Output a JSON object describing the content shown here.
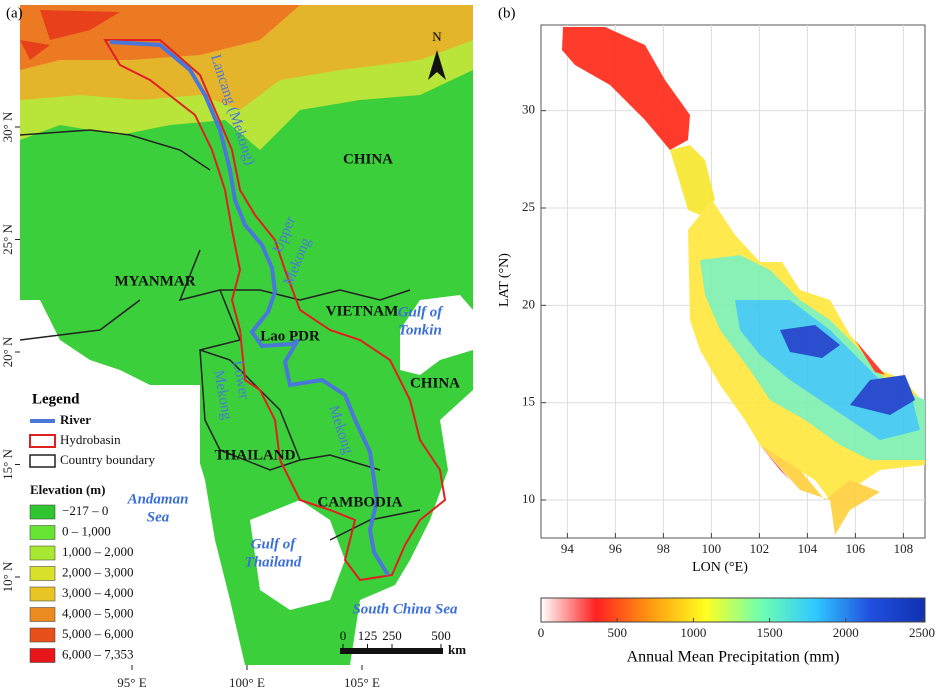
{
  "panel_a": {
    "label": "(a)",
    "countries": [
      "CHINA",
      "MYANMAR",
      "VIETNAM",
      "Lao PDR",
      "CHINA",
      "THAILAND",
      "CAMBODIA"
    ],
    "waters": [
      "Gulf of",
      "Tonkin",
      "Andaman",
      "Sea",
      "Gulf of",
      "Thailand",
      "South China Sea"
    ],
    "river_labels": [
      "Lancang (Mekong)",
      "Upper",
      "Mekong",
      "Lower",
      "Mekong",
      "Mekong"
    ],
    "north": "N",
    "legend": {
      "title": "Legend",
      "items": [
        "River",
        "Hydrobasin",
        "Country boundary"
      ],
      "elevation_title": "Elevation (m)",
      "elevation_classes": [
        "−217 – 0",
        "0 – 1,000",
        "1,000 – 2,000",
        "2,000 – 3,000",
        "3,000 – 4,000",
        "4,000 – 5,000",
        "5,000 – 6,000",
        "6,000 – 7,353"
      ],
      "elevation_colors": [
        "#2fc62f",
        "#66e633",
        "#a8e833",
        "#d9e02a",
        "#e8c424",
        "#ec8a22",
        "#e8501a",
        "#e8161a"
      ]
    },
    "scale": {
      "ticks": [
        0,
        125,
        250,
        500
      ],
      "unit": "km"
    },
    "lon_ticks": [
      {
        "value": 95,
        "label": "95° E"
      },
      {
        "value": 100,
        "label": "100° E"
      },
      {
        "value": 105,
        "label": "105° E"
      }
    ],
    "lat_ticks": [
      {
        "value": 30,
        "label": "30° N"
      },
      {
        "value": 25,
        "label": "25° N"
      },
      {
        "value": 20,
        "label": "20° N"
      },
      {
        "value": 15,
        "label": "15° N"
      },
      {
        "value": 10,
        "label": "10° N"
      }
    ]
  },
  "panel_b": {
    "label": "(b)",
    "xlabel": "LON (°E)",
    "ylabel": "LAT (°N)",
    "xlim": [
      92.9,
      108.9
    ],
    "ylim": [
      8.05,
      34.4
    ],
    "xticks": [
      94,
      96,
      98,
      100,
      102,
      104,
      106,
      108
    ],
    "yticks": [
      10,
      15,
      20,
      25,
      30
    ],
    "grid": true,
    "colorbar": {
      "label": "Annual Mean Precipitation (mm)",
      "lim": [
        0,
        2520
      ],
      "ticks": [
        0,
        500,
        1000,
        1500,
        2000,
        2500
      ],
      "colors": [
        "#ffffff",
        "#ff2020",
        "#ff9a10",
        "#ffff20",
        "#70ffb0",
        "#30c8ff",
        "#2050e0",
        "#1030b0"
      ]
    }
  }
}
